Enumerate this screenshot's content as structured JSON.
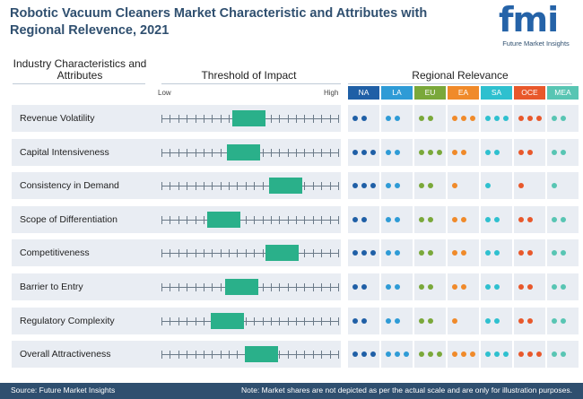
{
  "title": "Robotic Vacuum Cleaners Market Characteristic and Attributes with Regional Relevence, 2021",
  "logo": {
    "mark": "fmi",
    "subtitle": "Future Market Insights"
  },
  "columns": {
    "characteristics": "Industry Characteristics and Attributes",
    "threshold": "Threshold of Impact",
    "regional": "Regional Relevance"
  },
  "scale": {
    "low": "Low",
    "high": "High"
  },
  "regions": [
    {
      "code": "NA",
      "color": "#1f5fa6"
    },
    {
      "code": "LA",
      "color": "#2e9bd6"
    },
    {
      "code": "EU",
      "color": "#7aa83a"
    },
    {
      "code": "EA",
      "color": "#f08a2a"
    },
    {
      "code": "SA",
      "color": "#2ec0cf"
    },
    {
      "code": "OCE",
      "color": "#e8582b"
    },
    {
      "code": "MEA",
      "color": "#58c5b3"
    }
  ],
  "rows": [
    {
      "label": "Revenue Volatility",
      "impact": [
        0.4,
        0.59
      ],
      "dots": [
        2,
        2,
        2,
        3,
        3,
        3,
        2
      ]
    },
    {
      "label": "Capital Intensiveness",
      "impact": [
        0.37,
        0.56
      ],
      "dots": [
        3,
        2,
        3,
        2,
        2,
        2,
        2
      ]
    },
    {
      "label": "Consistency in Demand",
      "impact": [
        0.61,
        0.8
      ],
      "dots": [
        3,
        2,
        2,
        1,
        1,
        1,
        1
      ]
    },
    {
      "label": "Scope of Differentiation",
      "impact": [
        0.26,
        0.45
      ],
      "dots": [
        2,
        2,
        2,
        2,
        2,
        2,
        2
      ]
    },
    {
      "label": "Competitiveness",
      "impact": [
        0.59,
        0.78
      ],
      "dots": [
        3,
        2,
        2,
        2,
        2,
        2,
        2
      ]
    },
    {
      "label": "Barrier to Entry",
      "impact": [
        0.36,
        0.55
      ],
      "dots": [
        2,
        2,
        2,
        2,
        2,
        2,
        2
      ]
    },
    {
      "label": "Regulatory Complexity",
      "impact": [
        0.28,
        0.47
      ],
      "dots": [
        2,
        2,
        2,
        1,
        2,
        2,
        2
      ]
    },
    {
      "label": "Overall Attractiveness",
      "impact": [
        0.47,
        0.66
      ],
      "dots": [
        3,
        3,
        3,
        3,
        3,
        3,
        2
      ]
    }
  ],
  "footer": {
    "source": "Source: Future Market Insights",
    "note": "Note: Market shares are not depicted as per the actual scale and are only for illustration purposes."
  }
}
